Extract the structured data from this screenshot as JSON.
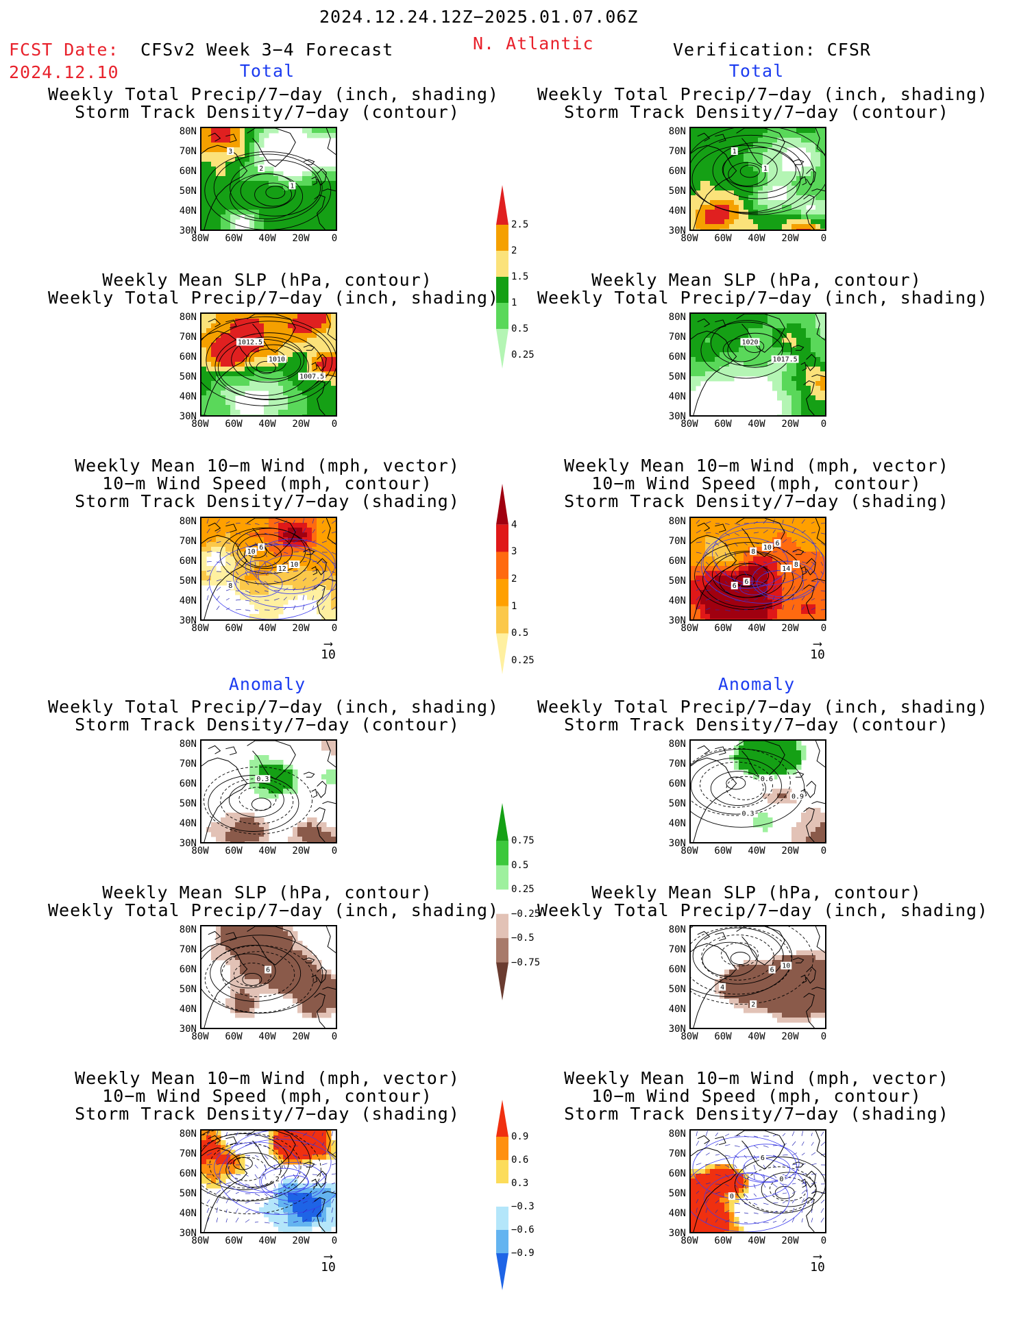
{
  "header": {
    "date_range": "2024.12.24.12Z−2025.01.07.06Z",
    "fcst_label": "FCST Date:",
    "fcst_date": "2024.12.10",
    "model": "CFSv2 Week 3−4 Forecast",
    "region": "N. Atlantic",
    "verification": "Verification: CFSR"
  },
  "sections": {
    "total": "Total",
    "anomaly": "Anomaly"
  },
  "panel_titles": {
    "precip_storm": [
      "Weekly Total Precip/7−day (inch, shading)",
      "Storm Track Density/7−day (contour)"
    ],
    "slp_precip": [
      "Weekly Mean SLP (hPa, contour)",
      "Weekly Total Precip/7−day (inch, shading)"
    ],
    "wind_storm": [
      "Weekly Mean 10−m Wind (mph, vector)",
      "10−m Wind Speed (mph, contour)",
      "Storm Track Density/7−day (shading)"
    ]
  },
  "axes": {
    "lat_ticks": [
      "80N",
      "70N",
      "60N",
      "50N",
      "40N",
      "30N"
    ],
    "lon_ticks": [
      "80W",
      "60W",
      "40W",
      "20W",
      "0"
    ]
  },
  "vector_ref": "10",
  "colorbars": [
    {
      "labels": [
        "2.5",
        "2",
        "1.5",
        "1",
        "0.5",
        "0.25"
      ],
      "colors": [
        "#e02020",
        "#f5a000",
        "#fbe27a",
        "#15a015",
        "#5ad85a",
        "#b4f5b4"
      ]
    },
    {
      "labels": [
        "4",
        "3",
        "2",
        "1",
        "0.5",
        "0.25"
      ],
      "colors": [
        "#a00010",
        "#e01818",
        "#ff6a10",
        "#ffa000",
        "#fbc84a",
        "#fff0a0"
      ]
    },
    {
      "labels": [
        "0.75",
        "0.5",
        "0.25",
        "−0.25",
        "−0.5",
        "−0.75"
      ],
      "colors": [
        "#15a015",
        "#3cc83c",
        "#9ef09e",
        "#ffffff",
        "#e2c2b6",
        "#a87a6a",
        "#6a3c30"
      ]
    },
    {
      "labels": [
        "0.9",
        "0.6",
        "0.3",
        "−0.3",
        "−0.6",
        "−0.9"
      ],
      "colors": [
        "#f03010",
        "#ff9010",
        "#fcdc5a",
        "#ffffff",
        "#b4e6fa",
        "#64b4f0",
        "#1e64e6"
      ]
    }
  ],
  "contour_labels": {
    "r1l": [
      "3",
      "2",
      "1"
    ],
    "r1r": [
      "1",
      "1"
    ],
    "r2l": [
      "1012.5",
      "1010",
      "1007.5"
    ],
    "r2r": [
      "1020",
      "1017.5"
    ],
    "r3l": [
      "10",
      "12",
      "8",
      "6",
      "10"
    ],
    "r3r": [
      "8",
      "14",
      "6",
      "10",
      "8",
      "6",
      "6"
    ],
    "r4l": [
      "0.3"
    ],
    "r4r": [
      "0.6",
      "0.9",
      "0.3"
    ],
    "r5l": [
      "6"
    ],
    "r5r": [
      "6",
      "4",
      "2",
      "10"
    ],
    "r6l": [
      "2"
    ],
    "r6r": [
      "0",
      "0",
      "6"
    ]
  }
}
